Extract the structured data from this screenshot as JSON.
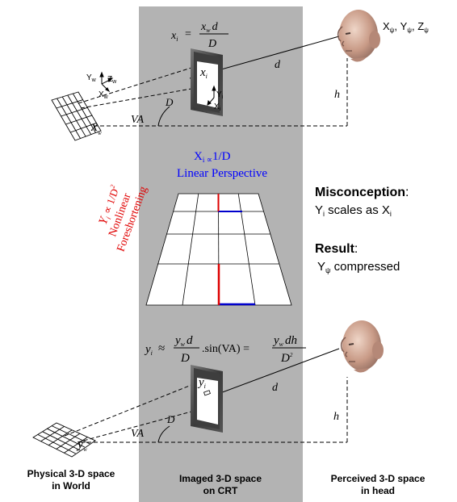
{
  "top": {
    "formula": {
      "lhs": "x",
      "lhs_sub": "i",
      "eq": " = ",
      "num": "x",
      "num_sub": "w",
      "num_tail": "d",
      "den": "D"
    },
    "world_axes": {
      "y": "Y",
      "y_sub": "w",
      "z": "Z",
      "z_sub": "w",
      "x": "X",
      "x_sub": "w"
    },
    "image_axes": {
      "y": "Y",
      "y_sub": "i",
      "x": "X",
      "x_sub": "i"
    },
    "screen_point": {
      "main": "x",
      "sub": "i"
    },
    "world_point": {
      "main": "x",
      "sub": "w"
    },
    "d": "d",
    "D": "D",
    "h": "h",
    "VA": "VA",
    "head_coords": {
      "X": "X",
      "Xs": "ψ",
      "sep1": ", Y",
      "Ys": "ψ",
      "sep2": ", Z",
      "Zs": "ψ"
    }
  },
  "middle": {
    "linear_line1_a": "X",
    "linear_line1_sub": "i",
    "linear_line1_prop": " ∝",
    "linear_line1_b": "1/D",
    "linear_line2": "Linear Perspective",
    "nonlinear_line1": "Y",
    "nonlinear_line1_sub": "i",
    "nonlinear_line1_rest": " ∝ 1/D",
    "nonlinear_line1_sup": "2",
    "nonlinear_line2": "Nonlinear",
    "nonlinear_line3": "Foreshortening",
    "misconception_label": "Misconception",
    "misconception_colon": ":",
    "misconception_text_a": "Y",
    "misconception_text_sub1": "i",
    "misconception_text_mid": " scales as X",
    "misconception_text_sub2": "i",
    "result_label": "Result",
    "result_colon": ":",
    "result_text_a": "Y",
    "result_text_sub": "ψ",
    "result_text_b": " compressed"
  },
  "bottom": {
    "formula": {
      "lhs": "y",
      "lhs_sub": "i",
      "approx": " ≈ ",
      "num": "y",
      "num_sub": "w",
      "num_tail": "d",
      "den": "D",
      "sin": ".sin(VA) = ",
      "num2": "y",
      "num2_sub": "w",
      "num2_tail": "dh",
      "den2": "D",
      "den2_sup": "2"
    },
    "screen_point": {
      "main": "y",
      "sub": "i"
    },
    "world_point": {
      "main": "y",
      "sub": "w"
    },
    "d": "d",
    "D": "D",
    "h": "h",
    "VA": "VA"
  },
  "captions": {
    "left_line1": "Physical 3-D space",
    "left_line2": "in World",
    "center_line1": "Imaged 3-D space",
    "center_line2": "on CRT",
    "right_line1": "Perceived  3-D space",
    "right_line2": "in head"
  },
  "colors": {
    "panel": "#b3b3b3",
    "blue": "#0000ff",
    "red": "#e00000",
    "blue_bar": "#0000cc",
    "red_bar": "#dd0000"
  }
}
